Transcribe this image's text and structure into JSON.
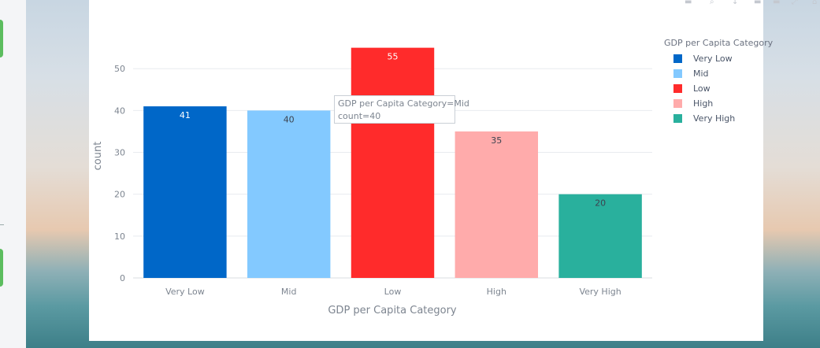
{
  "chart_data": {
    "type": "bar",
    "categories": [
      "Very Low",
      "Mid",
      "Low",
      "High",
      "Very High"
    ],
    "values": [
      41,
      40,
      55,
      35,
      20
    ],
    "colors": [
      "#0067c8",
      "#83c9ff",
      "#ff2b2b",
      "#ffabab",
      "#29b09d"
    ],
    "xlabel": "GDP per Capita Category",
    "ylabel": "count",
    "ylim": [
      0,
      57
    ],
    "yticks": [
      0,
      10,
      20,
      30,
      40,
      50
    ],
    "grid": true,
    "legend": {
      "title": "GDP per Capita Category",
      "placement": "right",
      "items": [
        "Very Low",
        "Mid",
        "Low",
        "High",
        "Very High"
      ]
    },
    "tooltip": {
      "line1": "GDP per Capita Category=Mid",
      "line2": "count=40"
    }
  },
  "colors": {
    "axis_text": "#7d8590",
    "grid": "#e8ebef",
    "label_dark": "#3c4350",
    "label_light": "#ffffff"
  }
}
